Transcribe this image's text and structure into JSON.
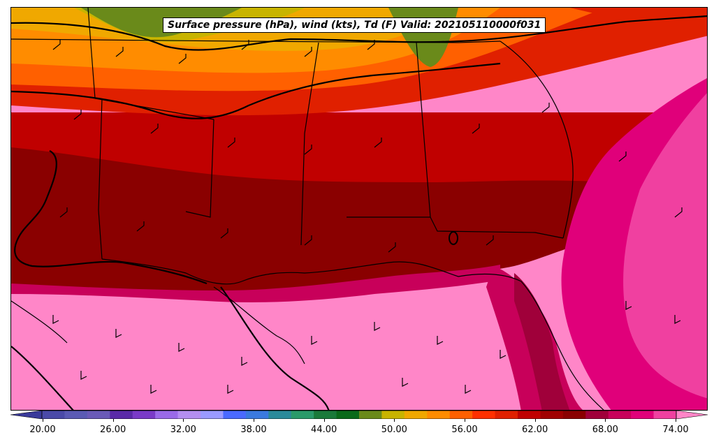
{
  "title": "Surface pressure (hPa), wind (kts), Td (F) Valid: 202105110000f031",
  "colorbar": {
    "ticks": [
      "20.00",
      "26.00",
      "32.00",
      "38.00",
      "44.00",
      "50.00",
      "56.00",
      "62.00",
      "68.00",
      "74.00"
    ],
    "colors": [
      "#3a3a9a",
      "#4a4aa8",
      "#5a5ab4",
      "#6a5ab8",
      "#5a2aa8",
      "#7a3ac8",
      "#9a6ae8",
      "#b48ef0",
      "#9a9aff",
      "#4a6aff",
      "#3a7adf",
      "#2a8a9a",
      "#2a9a6a",
      "#1a7a3a",
      "#0a6a1a",
      "#6a8a1a",
      "#c8b400",
      "#f0a800",
      "#ff8c00",
      "#ff6000",
      "#ff3000",
      "#e02000",
      "#c00000",
      "#a00000",
      "#8a0000",
      "#a0003a",
      "#c8005a",
      "#e0007a",
      "#f040a0",
      "#ff86c8"
    ]
  }
}
